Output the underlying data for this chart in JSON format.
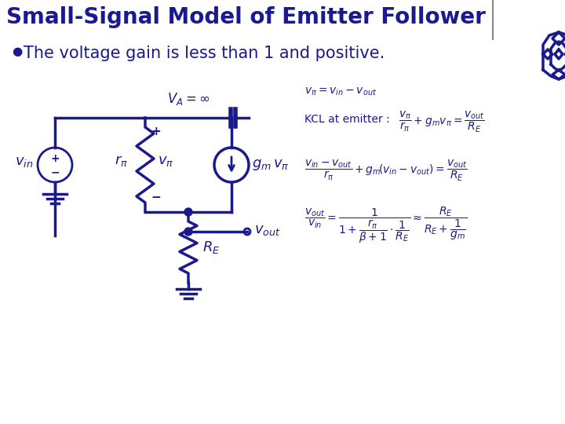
{
  "title": "Small-Signal Model of Emitter Follower",
  "title_color": "#1a1a8c",
  "title_fontsize": 20,
  "background_color": "#ffffff",
  "bullet_text": "The voltage gain is less than 1 and positive.",
  "bullet_color": "#1a1a8c",
  "bullet_fontsize": 15,
  "circuit_color": "#1a1a8c",
  "logo_color": "#1a1a8c",
  "equation_color": "#1a1a8c",
  "sep_line_color": "#888888"
}
